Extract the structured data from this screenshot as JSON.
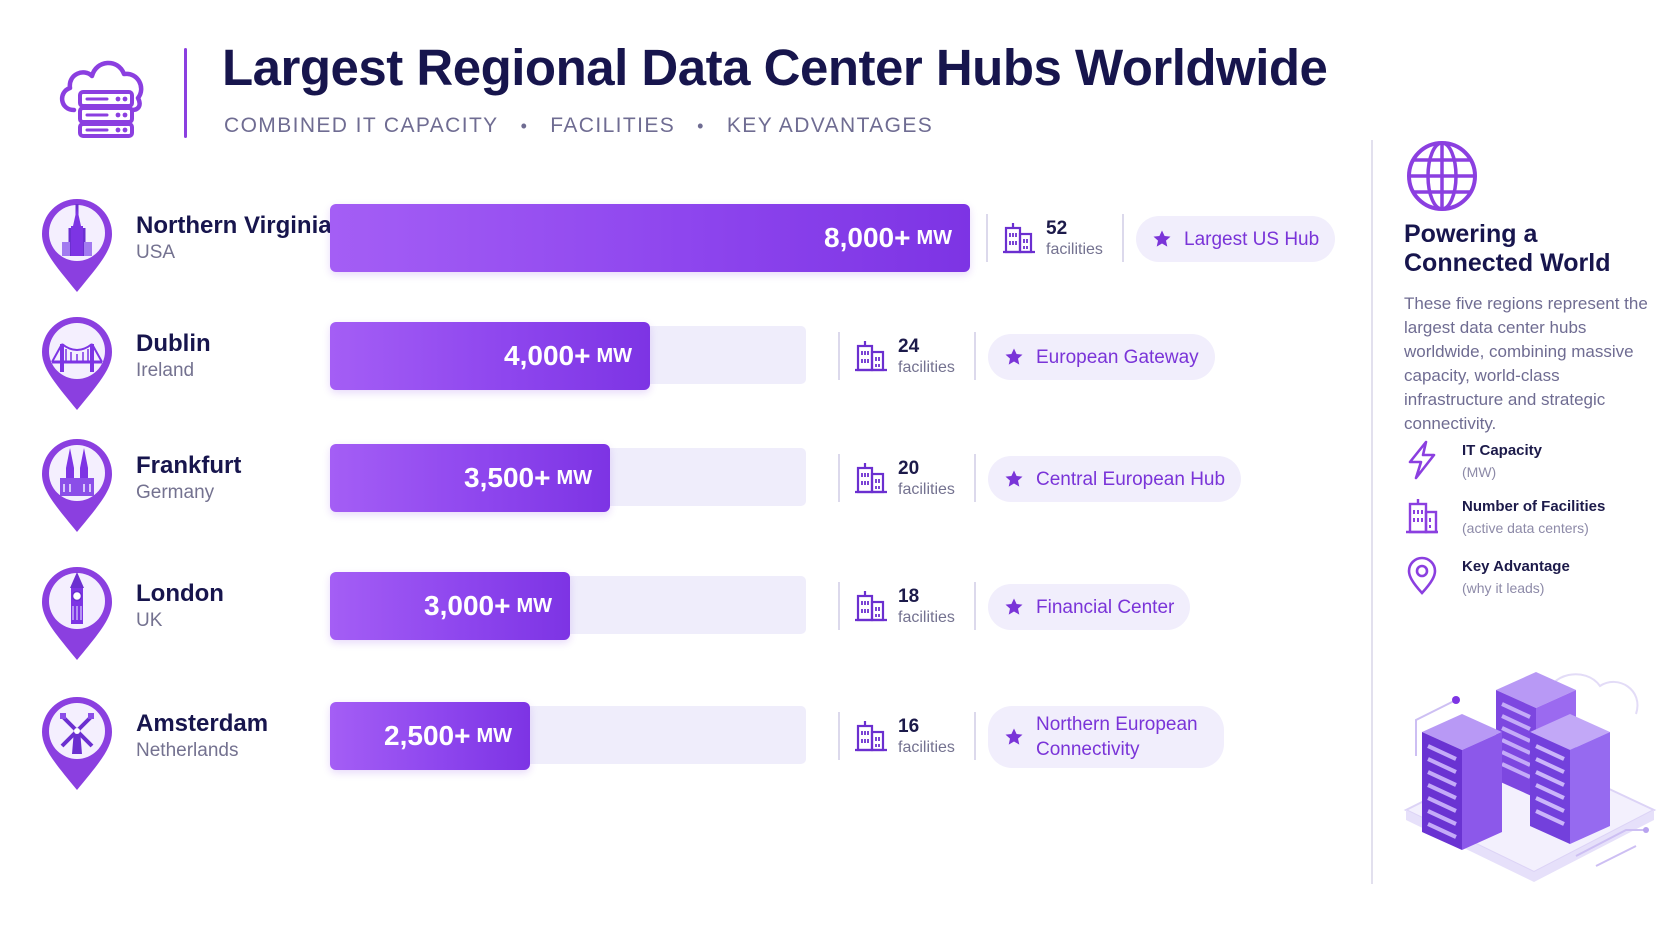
{
  "header": {
    "title": "Largest Regional Data Center Hubs Worldwide",
    "subtitle_items": [
      "COMBINED IT CAPACITY",
      "FACILITIES",
      "KEY ADVANTAGES"
    ],
    "logo_icon": "cloud-server-icon"
  },
  "colors": {
    "accent": "#8b3fe0",
    "bar_start": "#a45ef5",
    "bar_end": "#7d34e4",
    "track": "#efedfb",
    "title": "#17154d",
    "pill_bg": "#f1eefc",
    "pill_text": "#7a34d8"
  },
  "chart_data": {
    "type": "bar",
    "orientation": "horizontal",
    "title": "Largest Regional Data Center Hubs Worldwide",
    "unit": "MW",
    "categories": [
      "Northern Virginia",
      "Dublin",
      "Frankfurt",
      "London",
      "Amsterdam"
    ],
    "values": [
      8000,
      4000,
      3500,
      3000,
      2500
    ],
    "value_labels": [
      "8,000+",
      "4,000+",
      "3,500+",
      "3,000+",
      "2,500+"
    ],
    "xlim": [
      0,
      8000
    ],
    "grid": false,
    "legend": "none"
  },
  "hubs": [
    {
      "city": "Northern Virginia",
      "country": "USA",
      "capacity": "8,000+",
      "unit": "MW",
      "facilities": "52",
      "facilities_label": "facilities",
      "advantage": "Largest US Hub",
      "landmark_icon": "capitol-landmark-icon"
    },
    {
      "city": "Dublin",
      "country": "Ireland",
      "capacity": "4,000+",
      "unit": "MW",
      "facilities": "24",
      "facilities_label": "facilities",
      "advantage": "European Gateway",
      "landmark_icon": "bridge-landmark-icon"
    },
    {
      "city": "Frankfurt",
      "country": "Germany",
      "capacity": "3,500+",
      "unit": "MW",
      "facilities": "20",
      "facilities_label": "facilities",
      "advantage": "Central European Hub",
      "landmark_icon": "cathedral-landmark-icon"
    },
    {
      "city": "London",
      "country": "UK",
      "capacity": "3,000+",
      "unit": "MW",
      "facilities": "18",
      "facilities_label": "facilities",
      "advantage": "Financial Center",
      "landmark_icon": "big-ben-landmark-icon"
    },
    {
      "city": "Amsterdam",
      "country": "Netherlands",
      "capacity": "2,500+",
      "unit": "MW",
      "facilities": "16",
      "facilities_label": "facilities",
      "advantage": "Northern European Connectivity",
      "landmark_icon": "windmill-landmark-icon"
    }
  ],
  "side_panel": {
    "icon": "globe-icon",
    "title": "Powering a Connected World",
    "description": "These five regions represent the largest data center hubs worldwide, combining massive capacity, world-class infrastructure and strategic connectivity.",
    "legend": [
      {
        "label": "IT Capacity",
        "sub": "(MW)",
        "icon": "lightning-icon"
      },
      {
        "label": "Number of Facilities",
        "sub": "(active data centers)",
        "icon": "building-icon"
      },
      {
        "label": "Key Advantage",
        "sub": "(why it leads)",
        "icon": "location-pin-icon"
      }
    ],
    "illustration": "server-racks-illustration"
  }
}
